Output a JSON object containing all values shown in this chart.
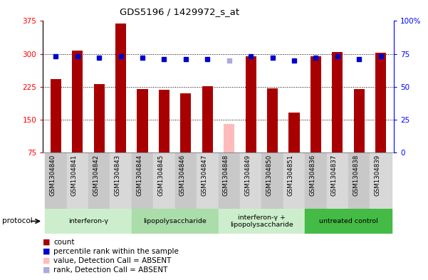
{
  "title": "GDS5196 / 1429972_s_at",
  "samples": [
    "GSM1304840",
    "GSM1304841",
    "GSM1304842",
    "GSM1304843",
    "GSM1304844",
    "GSM1304845",
    "GSM1304846",
    "GSM1304847",
    "GSM1304848",
    "GSM1304849",
    "GSM1304850",
    "GSM1304851",
    "GSM1304836",
    "GSM1304837",
    "GSM1304838",
    "GSM1304839"
  ],
  "counts": [
    242,
    308,
    232,
    370,
    220,
    218,
    210,
    226,
    140,
    295,
    222,
    167,
    295,
    305,
    220,
    302
  ],
  "ranks": [
    73,
    73,
    72,
    73,
    72,
    71,
    71,
    71,
    70,
    73,
    72,
    70,
    72,
    73,
    71,
    73
  ],
  "absent_bar_idx": 8,
  "absent_rank_idx": 8,
  "bar_color": "#a80000",
  "bar_color_absent": "#ffbbbb",
  "rank_color": "#0000cc",
  "rank_color_absent": "#aaaadd",
  "ylim_left": [
    75,
    375
  ],
  "ylim_right": [
    0,
    100
  ],
  "yticks_left": [
    75,
    150,
    225,
    300,
    375
  ],
  "yticks_right": [
    0,
    25,
    50,
    75,
    100
  ],
  "ytick_labels_right": [
    "0",
    "25",
    "50",
    "75",
    "100%"
  ],
  "protocols": [
    {
      "label": "interferon-γ",
      "start": 0,
      "end": 3,
      "color": "#cceecc"
    },
    {
      "label": "lipopolysaccharide",
      "start": 4,
      "end": 7,
      "color": "#aaddaa"
    },
    {
      "label": "interferon-γ +\nlipopolysaccharide",
      "start": 8,
      "end": 11,
      "color": "#cceecc"
    },
    {
      "label": "untreated control",
      "start": 12,
      "end": 15,
      "color": "#44bb44"
    }
  ],
  "legend_items": [
    {
      "label": "count",
      "color": "#a80000"
    },
    {
      "label": "percentile rank within the sample",
      "color": "#0000cc"
    },
    {
      "label": "value, Detection Call = ABSENT",
      "color": "#ffbbbb"
    },
    {
      "label": "rank, Detection Call = ABSENT",
      "color": "#aaaadd"
    }
  ],
  "bg_color": "#ffffff",
  "bar_width": 0.5,
  "col_colors": [
    "#c8c8c8",
    "#d8d8d8"
  ]
}
